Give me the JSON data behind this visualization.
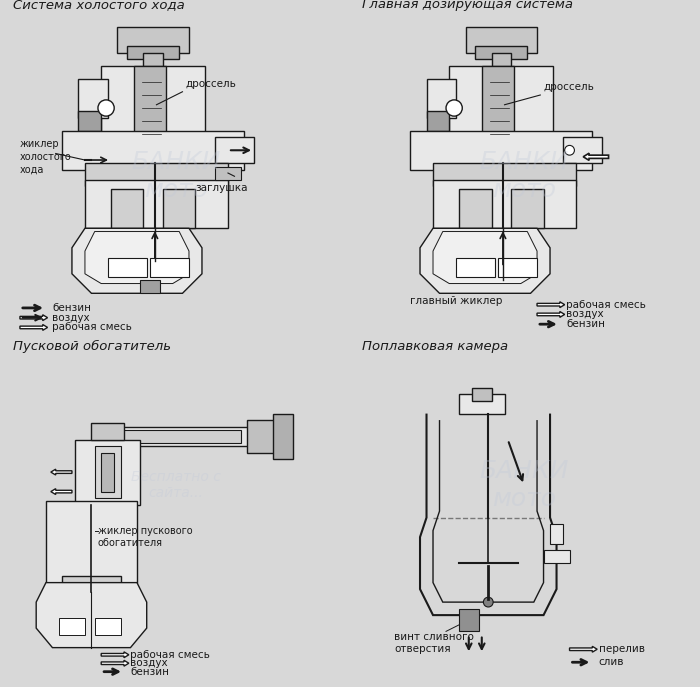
{
  "bg_color": "#d8d8d8",
  "panel_bg": "#e8e8e8",
  "watermark_color": "#c0c8d8",
  "line_color": "#1a1a1a",
  "gray_fill": "#a0a0a0",
  "light_gray": "#d0d0d0",
  "white": "#ffffff",
  "titles": [
    "Система холостого хода",
    "Главная дозирующая система",
    "Пусковой обогатитель",
    "Поплавковая камера"
  ],
  "labels_panel1": {
    "drossel": "дроссель",
    "zhikler": "жиклер\nхолостого\nхода",
    "zaglushka": "заглушка",
    "benzin": "бензин",
    "vozduh": "воздух",
    "smesh": "рабочая смесь"
  },
  "labels_panel2": {
    "drossel": "дроссель",
    "gl_zhikler": "главный жиклер",
    "smesh": "рабочая смесь",
    "vozduh": "воздух",
    "benzin": "бензин"
  },
  "labels_panel3": {
    "zhikler": "жиклер пускового\nобогатителя",
    "smesh": "рабочая смесь",
    "vozduh": "воздух",
    "benzin": "бензин"
  },
  "labels_panel4": {
    "vint": "винт сливного\nотверстия",
    "pereliv": "перелив",
    "sliv": "слив"
  }
}
